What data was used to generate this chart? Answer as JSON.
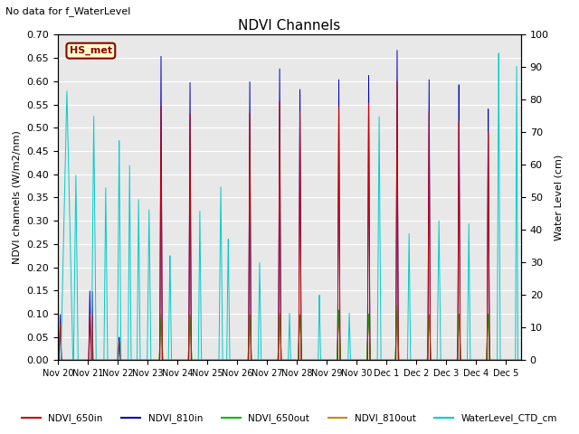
{
  "title": "NDVI Channels",
  "ylabel_left": "NDVI channels (W/m2/nm)",
  "ylabel_right": "Water Level (cm)",
  "top_left_text": "No data for f_WaterLevel",
  "station_label": "HS_met",
  "ylim_left": [
    0.0,
    0.7
  ],
  "ylim_right": [
    0,
    100
  ],
  "yticks_left": [
    0.0,
    0.05,
    0.1,
    0.15,
    0.2,
    0.25,
    0.3,
    0.35,
    0.4,
    0.45,
    0.5,
    0.55,
    0.6,
    0.65,
    0.7
  ],
  "yticks_right": [
    0,
    10,
    20,
    30,
    40,
    50,
    60,
    70,
    80,
    90,
    100
  ],
  "background_color": "#e8e8e8",
  "colors": {
    "NDVI_650in": "#cc0000",
    "NDVI_810in": "#0000bb",
    "NDVI_650out": "#00bb00",
    "NDVI_810out": "#cc8800",
    "WaterLevel_CTD_cm": "#00cccc"
  },
  "x_tick_labels": [
    "Nov 20",
    "Nov 21",
    "Nov 22",
    "Nov 23",
    "Nov 24",
    "Nov 25",
    "Nov 26",
    "Nov 27",
    "Nov 28",
    "Nov 29",
    "Nov 30",
    "Dec 1",
    "Dec 2",
    "Dec 3",
    "Dec 4",
    "Dec 5"
  ],
  "x_tick_positions": [
    0,
    1,
    2,
    3,
    4,
    5,
    6,
    7,
    8,
    9,
    10,
    11,
    12,
    13,
    14,
    15
  ],
  "xlim": [
    0,
    15.5
  ]
}
